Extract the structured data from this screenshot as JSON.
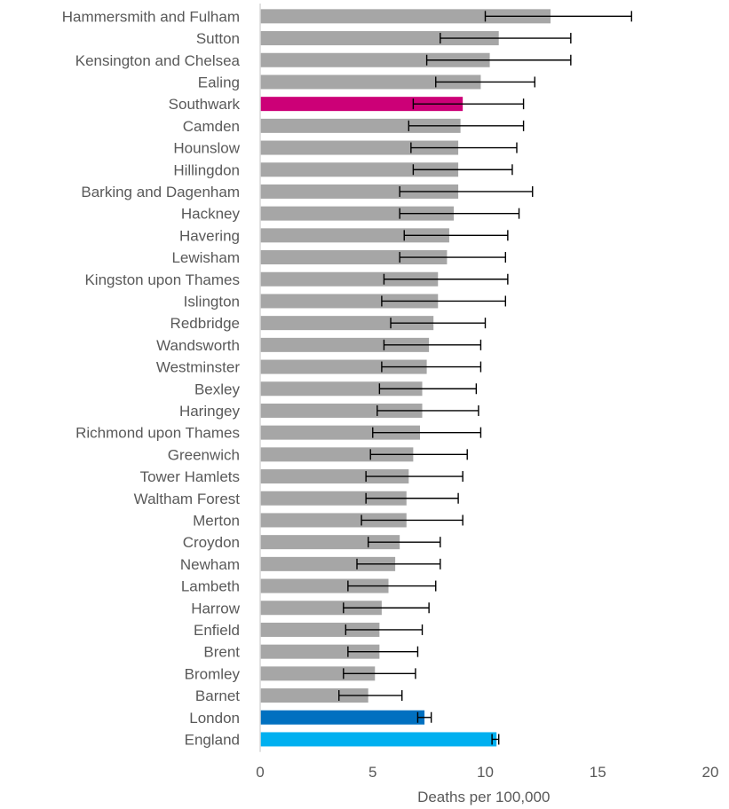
{
  "chart_data": {
    "type": "bar",
    "orientation": "horizontal",
    "title": "",
    "xlabel": "Deaths per 100,000",
    "ylabel": "",
    "xlim": [
      0,
      20
    ],
    "xticks": [
      0,
      5,
      10,
      15,
      20
    ],
    "grid": false,
    "legend": "none",
    "colors": {
      "default": "#a6a6a6",
      "Southwark": "#cc0077",
      "London": "#0070c0",
      "England": "#00b0f0",
      "error_bar": "#000000",
      "axis": "#d9d9d9",
      "text": "#595959"
    },
    "categories": [
      "Hammersmith and Fulham",
      "Sutton",
      "Kensington and Chelsea",
      "Ealing",
      "Southwark",
      "Camden",
      "Hounslow",
      "Hillingdon",
      "Barking and Dagenham",
      "Hackney",
      "Havering",
      "Lewisham",
      "Kingston upon Thames",
      "Islington",
      "Redbridge",
      "Wandsworth",
      "Westminster",
      "Bexley",
      "Haringey",
      "Richmond upon Thames",
      "Greenwich",
      "Tower Hamlets",
      "Waltham Forest",
      "Merton",
      "Croydon",
      "Newham",
      "Lambeth",
      "Harrow",
      "Enfield",
      "Brent",
      "Bromley",
      "Barnet",
      "London",
      "England"
    ],
    "values": [
      12.9,
      10.6,
      10.2,
      9.8,
      9.0,
      8.9,
      8.8,
      8.8,
      8.8,
      8.6,
      8.4,
      8.3,
      7.9,
      7.9,
      7.7,
      7.5,
      7.4,
      7.2,
      7.2,
      7.1,
      6.8,
      6.6,
      6.5,
      6.5,
      6.2,
      6.0,
      5.7,
      5.4,
      5.3,
      5.3,
      5.1,
      4.8,
      7.3,
      10.5
    ],
    "lower_ci": [
      10.0,
      8.0,
      7.4,
      7.8,
      6.8,
      6.6,
      6.7,
      6.8,
      6.2,
      6.2,
      6.4,
      6.2,
      5.5,
      5.4,
      5.8,
      5.5,
      5.4,
      5.3,
      5.2,
      5.0,
      4.9,
      4.7,
      4.7,
      4.5,
      4.8,
      4.3,
      3.9,
      3.7,
      3.8,
      3.9,
      3.7,
      3.5,
      7.0,
      10.3
    ],
    "upper_ci": [
      16.5,
      13.8,
      13.8,
      12.2,
      11.7,
      11.7,
      11.4,
      11.2,
      12.1,
      11.5,
      11.0,
      10.9,
      11.0,
      10.9,
      10.0,
      9.8,
      9.8,
      9.6,
      9.7,
      9.8,
      9.2,
      9.0,
      8.8,
      9.0,
      8.0,
      8.0,
      7.8,
      7.5,
      7.2,
      7.0,
      6.9,
      6.3,
      7.6,
      10.6
    ]
  }
}
